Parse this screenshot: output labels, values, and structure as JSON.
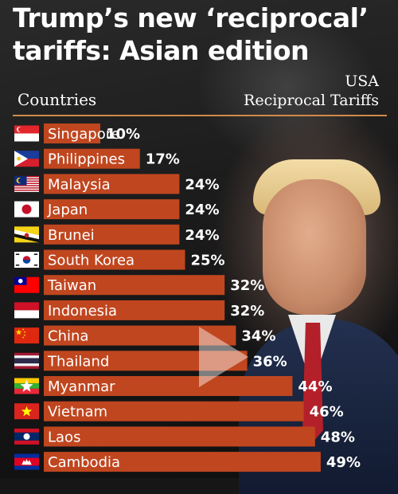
{
  "title_line1": "Trump’s new ‘reciprocal’",
  "title_line2": "tariffs: Asian edition",
  "colors": {
    "bar": "#c0461f",
    "text": "#ffffff",
    "rule": "#d08a4a"
  },
  "chart_data": {
    "type": "bar",
    "orientation": "horizontal",
    "category_header": "Countries",
    "value_header_line1": "USA",
    "value_header_line2": "Reciprocal Tariffs",
    "categories": [
      "Singapore",
      "Philippines",
      "Malaysia",
      "Japan",
      "Brunei",
      "South Korea",
      "Taiwan",
      "Indonesia",
      "China",
      "Thailand",
      "Myanmar",
      "Vietnam",
      "Laos",
      "Cambodia"
    ],
    "values": [
      10,
      17,
      24,
      24,
      24,
      25,
      32,
      32,
      34,
      36,
      44,
      46,
      48,
      49
    ],
    "value_labels": [
      "10%",
      "17%",
      "24%",
      "24%",
      "24%",
      "25%",
      "32%",
      "32%",
      "34%",
      "36%",
      "44%",
      "46%",
      "48%",
      "49%"
    ],
    "flags": [
      "singapore-flag",
      "philippines-flag",
      "malaysia-flag",
      "japan-flag",
      "brunei-flag",
      "south-korea-flag",
      "taiwan-flag",
      "indonesia-flag",
      "china-flag",
      "thailand-flag",
      "myanmar-flag",
      "vietnam-flag",
      "laos-flag",
      "cambodia-flag"
    ],
    "grid": false,
    "legend": "none"
  }
}
